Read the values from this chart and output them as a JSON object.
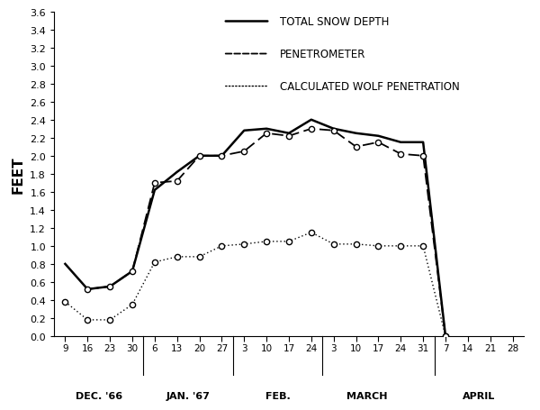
{
  "ylabel": "FEET",
  "ylim": [
    0,
    3.6
  ],
  "yticks": [
    0,
    0.2,
    0.4,
    0.6,
    0.8,
    1.0,
    1.2,
    1.4,
    1.6,
    1.8,
    2.0,
    2.2,
    2.4,
    2.6,
    2.8,
    3.0,
    3.2,
    3.4,
    3.6
  ],
  "x_labels": [
    "9",
    "16",
    "23",
    "30",
    "6",
    "13",
    "20",
    "27",
    "3",
    "10",
    "17",
    "24",
    "3",
    "10",
    "17",
    "24",
    "31",
    "7",
    "14",
    "21",
    "28"
  ],
  "x_positions": [
    0,
    1,
    2,
    3,
    4,
    5,
    6,
    7,
    8,
    9,
    10,
    11,
    12,
    13,
    14,
    15,
    16,
    17,
    18,
    19,
    20
  ],
  "month_labels": [
    "DEC. '66",
    "JAN. '67",
    "FEB.",
    "MARCH",
    "APRIL"
  ],
  "month_centers": [
    1.5,
    5.5,
    9.5,
    13.5,
    18.5
  ],
  "month_dividers": [
    3.5,
    7.5,
    11.5,
    16.5
  ],
  "snow_depth_x": [
    0,
    1,
    2,
    3,
    4,
    5,
    6,
    7,
    8,
    9,
    10,
    11,
    12,
    13,
    14,
    15,
    16,
    17
  ],
  "snow_depth_y": [
    0.8,
    0.52,
    0.55,
    0.72,
    1.62,
    1.82,
    2.0,
    2.0,
    2.28,
    2.3,
    2.25,
    2.4,
    2.3,
    2.25,
    2.22,
    2.15,
    2.15,
    0.0
  ],
  "penetrometer_x": [
    1,
    2,
    3,
    4,
    5,
    6,
    7,
    8,
    9,
    10,
    11,
    12,
    13,
    14,
    15,
    16,
    17
  ],
  "penetrometer_y": [
    0.52,
    0.55,
    0.72,
    1.7,
    1.72,
    2.0,
    2.0,
    2.05,
    2.25,
    2.22,
    2.3,
    2.28,
    2.1,
    2.15,
    2.02,
    2.0,
    0.0
  ],
  "wolf_x": [
    0,
    1,
    2,
    3,
    4,
    5,
    6,
    7,
    8,
    9,
    10,
    11,
    12,
    13,
    14,
    15,
    16,
    17
  ],
  "wolf_y": [
    0.38,
    0.18,
    0.18,
    0.35,
    0.82,
    0.88,
    0.88,
    1.0,
    1.02,
    1.05,
    1.05,
    1.15,
    1.02,
    1.02,
    1.0,
    1.0,
    1.0,
    0.0
  ],
  "legend_entries": [
    "TOTAL SNOW DEPTH",
    "PENETROMETER",
    "CALCULATED WOLF PENETRATION"
  ],
  "background_color": "#ffffff",
  "line_color": "#000000"
}
